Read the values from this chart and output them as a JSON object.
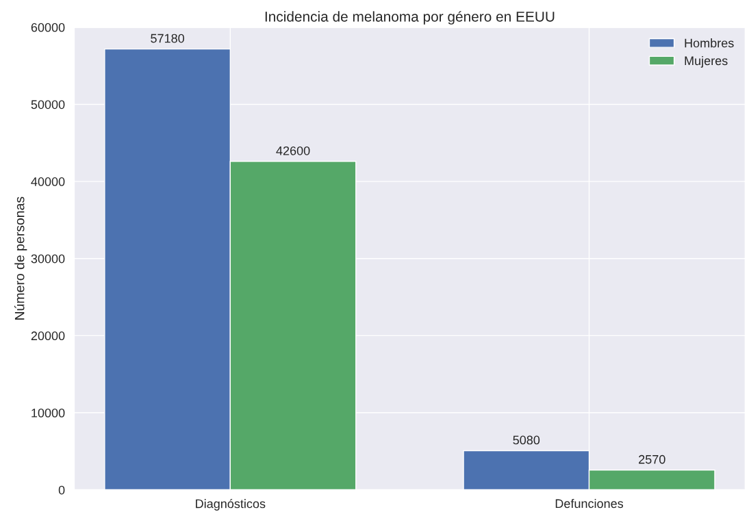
{
  "chart_data": {
    "type": "bar",
    "title": "Incidencia de melanoma por género en EEUU",
    "ylabel": "Número de personas",
    "categories": [
      "Diagnósticos",
      "Defunciones"
    ],
    "series": [
      {
        "name": "Hombres",
        "color": "#4c72b0",
        "values": [
          57180,
          5080
        ]
      },
      {
        "name": "Mujeres",
        "color": "#55a868",
        "values": [
          42600,
          2570
        ]
      }
    ],
    "ylim": [
      0,
      60000
    ],
    "yticks": [
      0,
      10000,
      20000,
      30000,
      40000,
      50000,
      60000
    ],
    "grid": true,
    "legend": "top right",
    "data_labels": true
  }
}
